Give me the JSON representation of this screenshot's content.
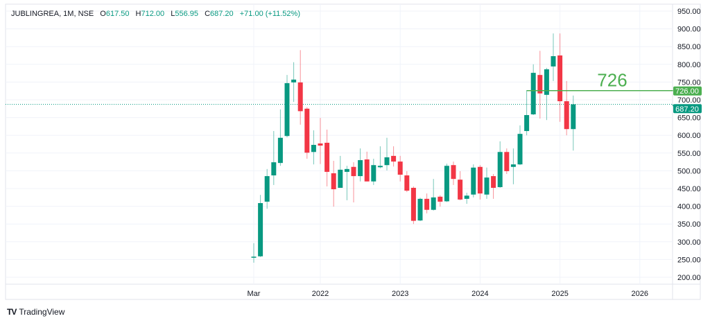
{
  "legend": {
    "symbol": "JUBLINGREA, 1M, NSE",
    "o_label": "O",
    "o": "617.50",
    "h_label": "H",
    "h": "712.00",
    "l_label": "L",
    "l": "556.95",
    "c_label": "C",
    "c": "687.20",
    "change": "+71.00 (+11.52%)"
  },
  "brand": {
    "logo": "TV",
    "name": "TradingView"
  },
  "colors": {
    "up": "#089981",
    "down": "#F23645",
    "line": "#4CAF50",
    "grid": "#f0f3fa",
    "axis_text": "#131722"
  },
  "chart_data": {
    "type": "candlestick",
    "title": "JUBLINGREA, 1M, NSE",
    "ylim": [
      200,
      950
    ],
    "yticks": [
      "200.00",
      "250.00",
      "300.00",
      "350.00",
      "400.00",
      "450.00",
      "500.00",
      "550.00",
      "600.00",
      "650.00",
      "700.00",
      "750.00",
      "800.00",
      "850.00",
      "900.00",
      "950.00"
    ],
    "xticks": [
      {
        "label": "Mar",
        "index": 0
      },
      {
        "label": "2022",
        "index": 10
      },
      {
        "label": "2023",
        "index": 22
      },
      {
        "label": "2024",
        "index": 34
      },
      {
        "label": "2025",
        "index": 46
      },
      {
        "label": "2026",
        "index": 58
      }
    ],
    "start": "2021-03",
    "candles": [
      [
        255,
        296,
        241,
        258
      ],
      [
        259,
        432,
        257,
        409
      ],
      [
        413,
        505,
        393,
        485
      ],
      [
        487,
        612,
        460,
        524
      ],
      [
        522,
        673,
        514,
        593
      ],
      [
        598,
        770,
        594,
        747
      ],
      [
        749,
        806,
        694,
        757
      ],
      [
        749,
        840,
        630,
        668
      ],
      [
        675,
        679,
        534,
        551
      ],
      [
        553,
        614,
        518,
        573
      ],
      [
        577,
        649,
        519,
        571
      ],
      [
        579,
        616,
        456,
        497
      ],
      [
        493,
        528,
        399,
        448
      ],
      [
        452,
        542,
        452,
        503
      ],
      [
        497,
        514,
        417,
        505
      ],
      [
        511,
        524,
        411,
        485
      ],
      [
        485,
        563,
        470,
        530
      ],
      [
        532,
        554,
        470,
        470
      ],
      [
        470,
        534,
        460,
        516
      ],
      [
        510,
        569,
        507,
        514
      ],
      [
        516,
        593,
        501,
        538
      ],
      [
        542,
        569,
        512,
        526
      ],
      [
        526,
        542,
        470,
        489
      ],
      [
        487,
        499,
        440,
        444
      ],
      [
        452,
        456,
        350,
        359
      ],
      [
        360,
        424,
        358,
        421
      ],
      [
        421,
        436,
        380,
        390
      ],
      [
        390,
        477,
        388,
        425
      ],
      [
        427,
        431,
        399,
        413
      ],
      [
        414,
        520,
        412,
        514
      ],
      [
        516,
        526,
        460,
        477
      ],
      [
        475,
        499,
        417,
        419
      ],
      [
        421,
        438,
        407,
        430
      ],
      [
        433,
        518,
        425,
        509
      ],
      [
        511,
        516,
        419,
        436
      ],
      [
        433,
        509,
        421,
        481
      ],
      [
        485,
        491,
        421,
        452
      ],
      [
        454,
        583,
        452,
        553
      ],
      [
        553,
        563,
        491,
        499
      ],
      [
        511,
        563,
        462,
        518
      ],
      [
        518,
        628,
        516,
        604
      ],
      [
        612,
        727,
        600,
        657
      ],
      [
        659,
        800,
        657,
        776
      ],
      [
        770,
        838,
        647,
        718
      ],
      [
        714,
        790,
        643,
        786
      ],
      [
        794,
        887,
        753,
        823
      ],
      [
        825,
        887,
        638,
        696
      ],
      [
        696,
        753,
        600,
        617.5
      ],
      [
        617.5,
        712,
        556.95,
        687.2
      ]
    ],
    "hline": {
      "value": 726,
      "start_index": 41,
      "label": "726",
      "axis_label": "726.00"
    },
    "last_price": {
      "value": 687.2,
      "axis_label": "687.20"
    }
  }
}
